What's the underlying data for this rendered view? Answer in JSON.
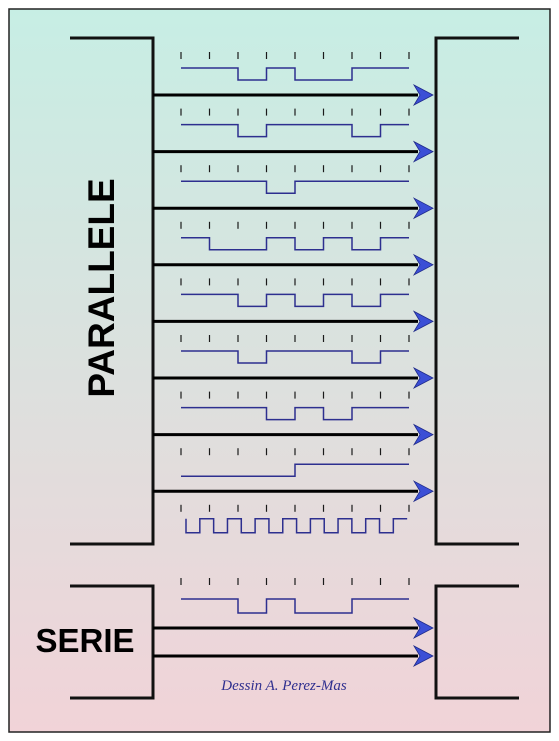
{
  "labels": {
    "parallel": "PARALLELE",
    "serial": "SERIE",
    "credit": "Dessin A. Perez-Mas"
  },
  "colors": {
    "background_top": "#c7eee4",
    "background_bottom": "#f1d3d8",
    "frame": "#222222",
    "line": "#000000",
    "signal": "#2d2f8f",
    "tick": "#1a1a1a",
    "arrowhead": "#3b4fd6",
    "credit": "#2f2f8f"
  },
  "diagram": {
    "slots": 8,
    "parallel_bits": [
      [
        1,
        1,
        0,
        1,
        0,
        0,
        1,
        1
      ],
      [
        1,
        1,
        0,
        1,
        1,
        1,
        0,
        1
      ],
      [
        1,
        1,
        1,
        0,
        1,
        1,
        1,
        1
      ],
      [
        1,
        0,
        0,
        1,
        0,
        1,
        0,
        1
      ],
      [
        1,
        1,
        0,
        1,
        0,
        1,
        0,
        1
      ],
      [
        1,
        1,
        0,
        1,
        1,
        1,
        0,
        1
      ],
      [
        1,
        1,
        1,
        0,
        1,
        0,
        1,
        1
      ],
      [
        0,
        0,
        0,
        0,
        1,
        1,
        1,
        1
      ]
    ],
    "clock_cycles": 8,
    "serial_bits": [
      1,
      1,
      0,
      1,
      0,
      0,
      1,
      1
    ],
    "serial_lines": 2
  }
}
